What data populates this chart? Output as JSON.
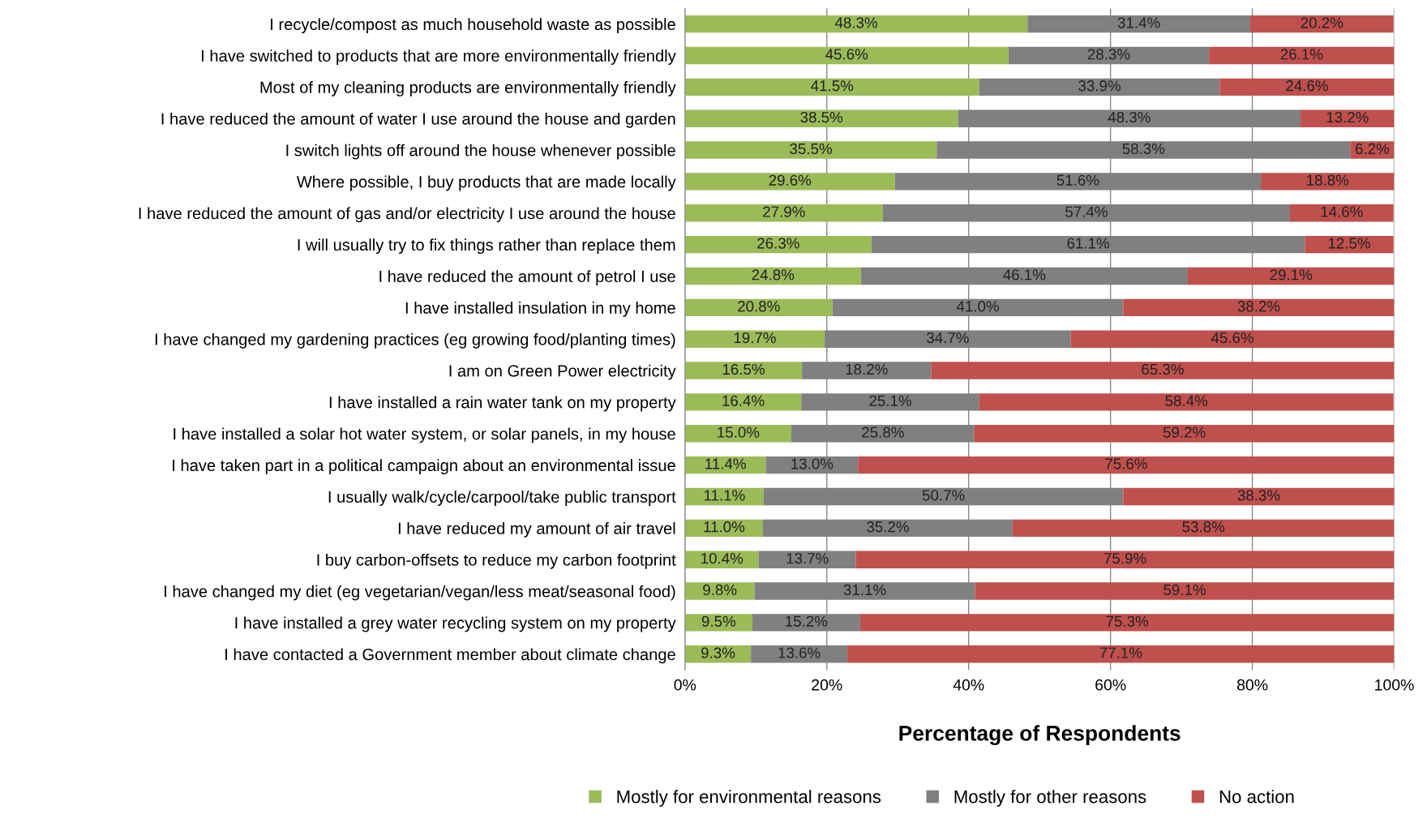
{
  "chart_data": {
    "type": "bar",
    "orientation": "horizontal",
    "stacked": true,
    "xlabel": "Percentage of Respondents",
    "categories": [
      "I recycle/compost as much household waste as possible",
      "I have switched to products that are more environmentally friendly",
      "Most of my cleaning products are environmentally friendly",
      "I have reduced the amount of water I use around the house and garden",
      "I switch lights off around the house whenever possible",
      "Where possible, I buy products that are made locally",
      "I have reduced the amount of gas and/or electricity I use around the house",
      "I will usually try to fix things rather than replace them",
      "I have reduced the amount of petrol I use",
      "I have installed insulation in my home",
      "I have changed my gardening practices (eg growing food/planting times)",
      "I am on Green Power electricity",
      "I have installed a rain water tank on my property",
      "I have installed a solar hot water system, or solar panels, in my house",
      "I have taken part in a political campaign about an environmental issue",
      "I usually walk/cycle/carpool/take public transport",
      "I have reduced my amount of air travel",
      "I buy carbon-offsets to reduce my carbon footprint",
      "I have changed my diet (eg vegetarian/vegan/less meat/seasonal food)",
      "I have installed a grey water recycling system on my property",
      "I have contacted a Government member about climate change"
    ],
    "series": [
      {
        "name": "Mostly for environmental reasons",
        "color": "#9bbb59",
        "values": [
          48.3,
          45.6,
          41.5,
          38.5,
          35.5,
          29.6,
          27.9,
          26.3,
          24.8,
          20.8,
          19.7,
          16.5,
          16.4,
          15.0,
          11.4,
          11.1,
          11.0,
          10.4,
          9.8,
          9.5,
          9.3
        ],
        "value_labels": [
          "48.3%",
          "45.6%",
          "41.5%",
          "38.5%",
          "35.5%",
          "29.6%",
          "27.9%",
          "26.3%",
          "24.8%",
          "20.8%",
          "19.7%",
          "16.5%",
          "16.4%",
          "15.0%",
          "11.4%",
          "11.1%",
          "11.0%",
          "10.4%",
          "9.8%",
          "9.5%",
          "9.3%"
        ]
      },
      {
        "name": "Mostly for other reasons",
        "color": "#808080",
        "values": [
          31.4,
          28.3,
          33.9,
          48.3,
          58.3,
          51.6,
          57.4,
          61.1,
          46.1,
          41.0,
          34.7,
          18.2,
          25.1,
          25.8,
          13.0,
          50.7,
          35.2,
          13.7,
          31.1,
          15.2,
          13.6
        ],
        "value_labels": [
          "31.4%",
          "28.3%",
          "33.9%",
          "48.3%",
          "58.3%",
          "51.6%",
          "57.4%",
          "61.1%",
          "46.1%",
          "41.0%",
          "34.7%",
          "18.2%",
          "25.1%",
          "25.8%",
          "13.0%",
          "50.7%",
          "35.2%",
          "13.7%",
          "31.1%",
          "15.2%",
          "13.6%"
        ]
      },
      {
        "name": "No action",
        "color": "#c0504d",
        "values": [
          20.2,
          26.1,
          24.6,
          13.2,
          6.2,
          18.8,
          14.6,
          12.5,
          29.1,
          38.2,
          45.6,
          65.3,
          58.4,
          59.2,
          75.6,
          38.3,
          53.8,
          75.9,
          59.1,
          75.3,
          77.1
        ],
        "value_labels": [
          "20.2%",
          "26.1%",
          "24.6%",
          "13.2%",
          "6.2%",
          "18.8%",
          "14.6%",
          "12.5%",
          "29.1%",
          "38.2%",
          "45.6%",
          "65.3%",
          "58.4%",
          "59.2%",
          "75.6%",
          "38.3%",
          "53.8%",
          "75.9%",
          "59.1%",
          "75.3%",
          "77.1%"
        ]
      }
    ],
    "xlim": [
      0,
      100
    ],
    "xticks": [
      {
        "value": 0,
        "label": "0%"
      },
      {
        "value": 20,
        "label": "20%"
      },
      {
        "value": 40,
        "label": "40%"
      },
      {
        "value": 60,
        "label": "60%"
      },
      {
        "value": 80,
        "label": "80%"
      },
      {
        "value": 100,
        "label": "100%"
      }
    ],
    "grid": "x",
    "legend": "bottom"
  }
}
